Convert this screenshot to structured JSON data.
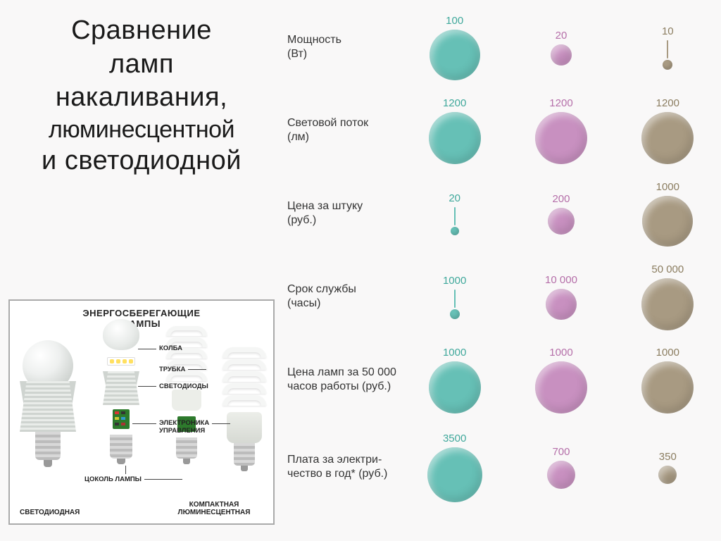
{
  "title": {
    "line1": "Сравнение",
    "line2": "ламп",
    "line3": "накаливания,",
    "line4": "люминесцентной",
    "line5": "и светодиодной"
  },
  "diagram": {
    "heading_line1": "ЭНЕРГОСБЕРЕГАЮЩИЕ",
    "heading_line2": "ЛАМПЫ",
    "callouts": {
      "kolba": "КОЛБА",
      "trubka": "ТРУБКА",
      "svetodiody": "СВЕТОДИОДЫ",
      "elektronika_l1": "ЭЛЕКТРОНИКА",
      "elektronika_l2": "УПРАВЛЕНИЯ",
      "tsokol": "ЦОКОЛЬ ЛАМПЫ"
    },
    "lamp_labels": {
      "led": "СВЕТОДИОДНАЯ",
      "cfl": "КОМПАКТНАЯ ЛЮМИНЕСЦЕНТНАЯ"
    }
  },
  "chart": {
    "colors": {
      "incandescent": "#66c0b6",
      "cfl": "#c890c0",
      "led": "#a89a82",
      "value_incandescent": "#3fa89b",
      "value_cfl": "#b56fa9",
      "value_led": "#8b7d60",
      "background": "#f9f8f8"
    },
    "size_range": {
      "min_diameter": 10,
      "max_diameter": 78,
      "pin_threshold": 20,
      "pin_height": 26
    },
    "metrics": [
      {
        "key": "power",
        "label_l1": "Мощность",
        "label_l2": "(Вт)",
        "cells": [
          {
            "value": 100,
            "diameter": 72,
            "style": "bubble"
          },
          {
            "value": 20,
            "diameter": 30,
            "style": "bubble"
          },
          {
            "value": 10,
            "diameter": 14,
            "style": "pin"
          }
        ]
      },
      {
        "key": "lumen",
        "label_l1": "Световой поток",
        "label_l2": "(лм)",
        "cells": [
          {
            "value": 1200,
            "diameter": 74,
            "style": "bubble"
          },
          {
            "value": 1200,
            "diameter": 74,
            "style": "bubble"
          },
          {
            "value": 1200,
            "diameter": 74,
            "style": "bubble"
          }
        ]
      },
      {
        "key": "price",
        "label_l1": "Цена за штуку",
        "label_l2": "(руб.)",
        "cells": [
          {
            "value": 20,
            "diameter": 12,
            "style": "pin"
          },
          {
            "value": 200,
            "diameter": 38,
            "style": "bubble"
          },
          {
            "value": 1000,
            "diameter": 72,
            "style": "bubble"
          }
        ]
      },
      {
        "key": "lifetime",
        "label_l1": "Срок службы",
        "label_l2": "(часы)",
        "cells": [
          {
            "value": 1000,
            "diameter": 14,
            "style": "pin"
          },
          {
            "value": "10 000",
            "diameter": 44,
            "style": "bubble"
          },
          {
            "value": "50 000",
            "diameter": 74,
            "style": "bubble"
          }
        ]
      },
      {
        "key": "cost50000",
        "label_l1": "Цена ламп за 50 000",
        "label_l2": "часов работы (руб.)",
        "cells": [
          {
            "value": 1000,
            "diameter": 74,
            "style": "bubble"
          },
          {
            "value": 1000,
            "diameter": 74,
            "style": "bubble"
          },
          {
            "value": 1000,
            "diameter": 74,
            "style": "bubble"
          }
        ]
      },
      {
        "key": "electricity",
        "label_l1": "Плата за электри-",
        "label_l2": "чество в год* (руб.)",
        "cells": [
          {
            "value": 3500,
            "diameter": 78,
            "style": "bubble"
          },
          {
            "value": 700,
            "diameter": 40,
            "style": "bubble"
          },
          {
            "value": 350,
            "diameter": 26,
            "style": "bubble"
          }
        ]
      }
    ]
  }
}
